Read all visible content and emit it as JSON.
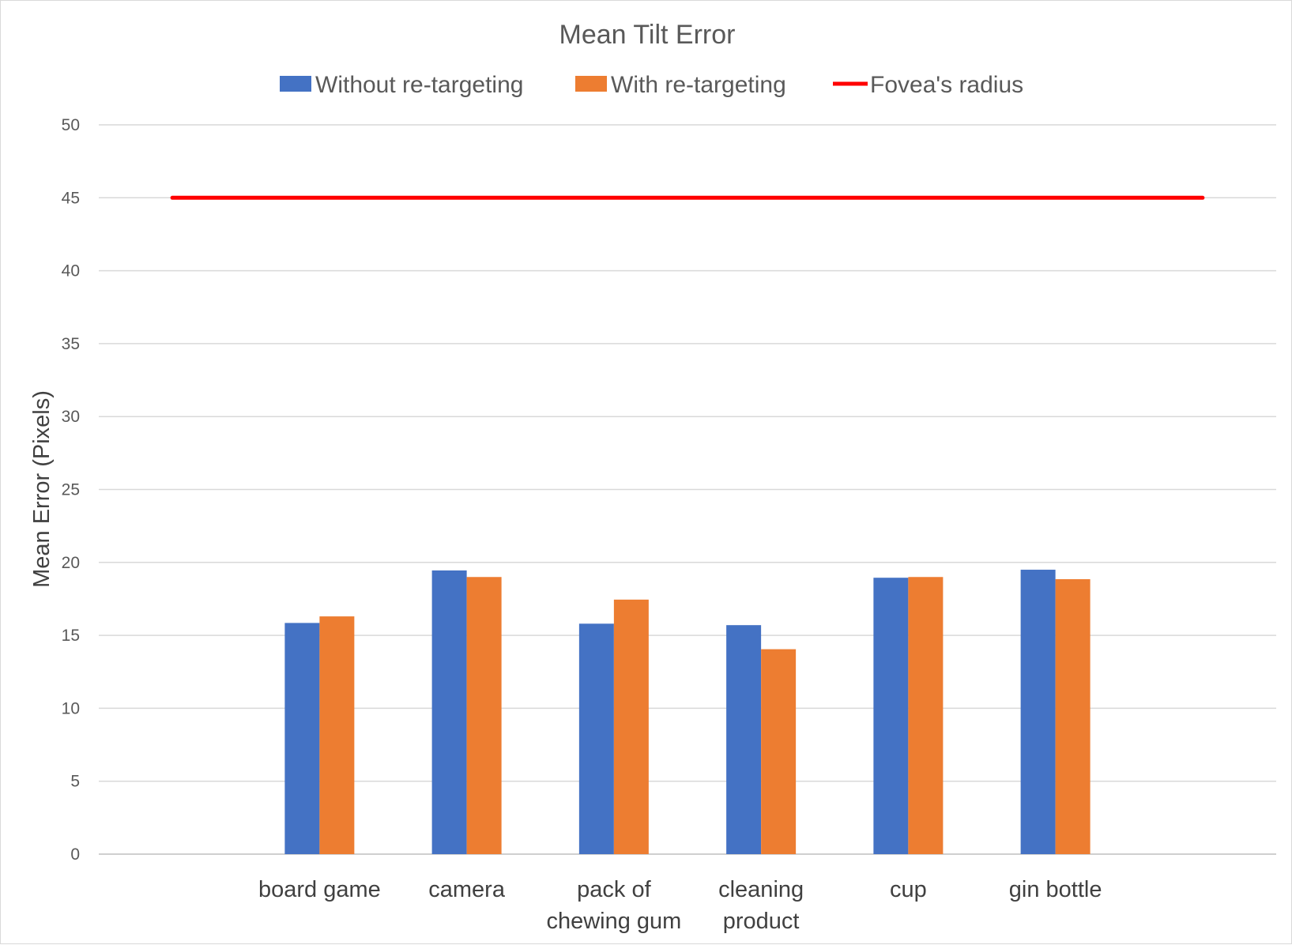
{
  "chart_data": {
    "type": "bar",
    "title": "Mean Tilt Error",
    "xlabel": "",
    "ylabel": "Mean Error (Pixels)",
    "ylim": [
      0,
      50
    ],
    "yticks": [
      0,
      5,
      10,
      15,
      20,
      25,
      30,
      35,
      40,
      45,
      50
    ],
    "grid": true,
    "legend": "top",
    "categories": [
      "",
      "board game",
      "camera",
      "pack of chewing gum",
      "cleaning product",
      "cup",
      "gin bottle",
      ""
    ],
    "category_lines": [
      [],
      [
        "board game"
      ],
      [
        "camera"
      ],
      [
        "pack of",
        "chewing gum"
      ],
      [
        "cleaning",
        "product"
      ],
      [
        "cup"
      ],
      [
        "gin bottle"
      ],
      []
    ],
    "series": [
      {
        "name": "Without re-targeting",
        "type": "bar",
        "color": "#4472C4",
        "values": [
          null,
          15.85,
          19.45,
          15.8,
          15.7,
          18.95,
          19.5,
          null
        ]
      },
      {
        "name": "With re-targeting",
        "type": "bar",
        "color": "#ED7D31",
        "values": [
          null,
          16.3,
          19.0,
          17.45,
          14.05,
          19.0,
          18.85,
          null
        ]
      },
      {
        "name": "Fovea's radius",
        "type": "line",
        "color": "#FF0000",
        "values": [
          45,
          45,
          45,
          45,
          45,
          45,
          45,
          45
        ]
      }
    ]
  }
}
